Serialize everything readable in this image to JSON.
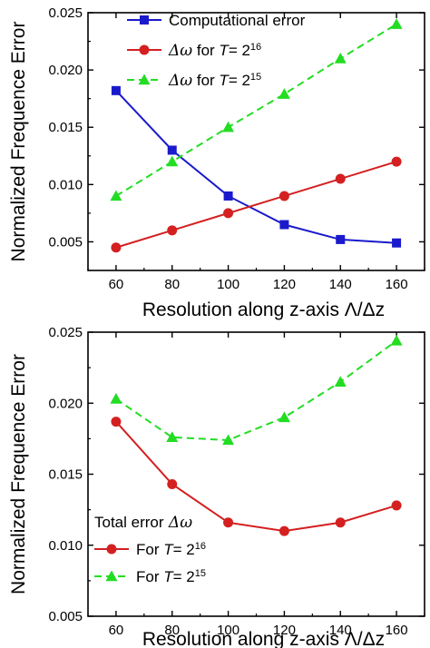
{
  "chart_data": [
    {
      "type": "line",
      "xlabel": "Resolution along z-axis Λ/Δz",
      "ylabel": "Normalized Frequence Error",
      "x": [
        60,
        80,
        100,
        120,
        140,
        160
      ],
      "xticks": [
        "60",
        "80",
        "100",
        "120",
        "140",
        "160"
      ],
      "xlim": [
        50,
        170
      ],
      "ylim": [
        0.0025,
        0.025
      ],
      "yticks": [
        "0.005",
        "0.010",
        "0.015",
        "0.020",
        "0.025"
      ],
      "ytick_values": [
        0.005,
        0.01,
        0.015,
        0.02,
        0.025
      ],
      "legend_position": "top",
      "series": [
        {
          "name": "Computational error",
          "legend_parts": [
            "Computational error"
          ],
          "values": [
            0.0182,
            0.013,
            0.009,
            0.0065,
            0.0052,
            0.0049
          ],
          "color": "#1a1acc",
          "marker": "square",
          "dash": "solid"
        },
        {
          "name": "Δω for T= 2^16",
          "legend_parts": [
            "Δω",
            "for",
            "T",
            "= 2",
            "16"
          ],
          "values": [
            0.0045,
            0.006,
            0.0075,
            0.009,
            0.0105,
            0.012
          ],
          "color": "#d42020",
          "marker": "circle",
          "dash": "solid"
        },
        {
          "name": "Δω for T= 2^15",
          "legend_parts": [
            "Δω",
            "for",
            "T",
            "= 2",
            "15"
          ],
          "values": [
            0.009,
            0.012,
            0.015,
            0.0179,
            0.021,
            0.024
          ],
          "color": "#22dd22",
          "marker": "triangle",
          "dash": "dashed"
        }
      ]
    },
    {
      "type": "line",
      "xlabel": "Resolution along z-axis Λ/Δz",
      "ylabel": "Normalized Frequence Error",
      "x": [
        60,
        80,
        100,
        120,
        140,
        160
      ],
      "xticks": [
        "60",
        "80",
        "100",
        "120",
        "140",
        "160"
      ],
      "xlim": [
        50,
        170
      ],
      "ylim": [
        0.005,
        0.025
      ],
      "yticks": [
        "0.005",
        "0.010",
        "0.015",
        "0.020",
        "0.025"
      ],
      "ytick_values": [
        0.005,
        0.01,
        0.015,
        0.02,
        0.025
      ],
      "legend_title": "Total error Δω",
      "legend_title_parts": [
        "Total error",
        "Δω"
      ],
      "legend_position": "bottom-left",
      "series": [
        {
          "name": "For T= 2^16",
          "legend_parts": [
            "For",
            "T",
            "= 2",
            "16"
          ],
          "values": [
            0.0187,
            0.0143,
            0.0116,
            0.011,
            0.0116,
            0.0128
          ],
          "color": "#d42020",
          "marker": "circle",
          "dash": "solid"
        },
        {
          "name": "For T= 2^15",
          "legend_parts": [
            "For",
            "T",
            "= 2",
            "15"
          ],
          "values": [
            0.0203,
            0.0176,
            0.0174,
            0.019,
            0.0215,
            0.0244
          ],
          "color": "#22dd22",
          "marker": "triangle",
          "dash": "dashed"
        }
      ]
    }
  ]
}
